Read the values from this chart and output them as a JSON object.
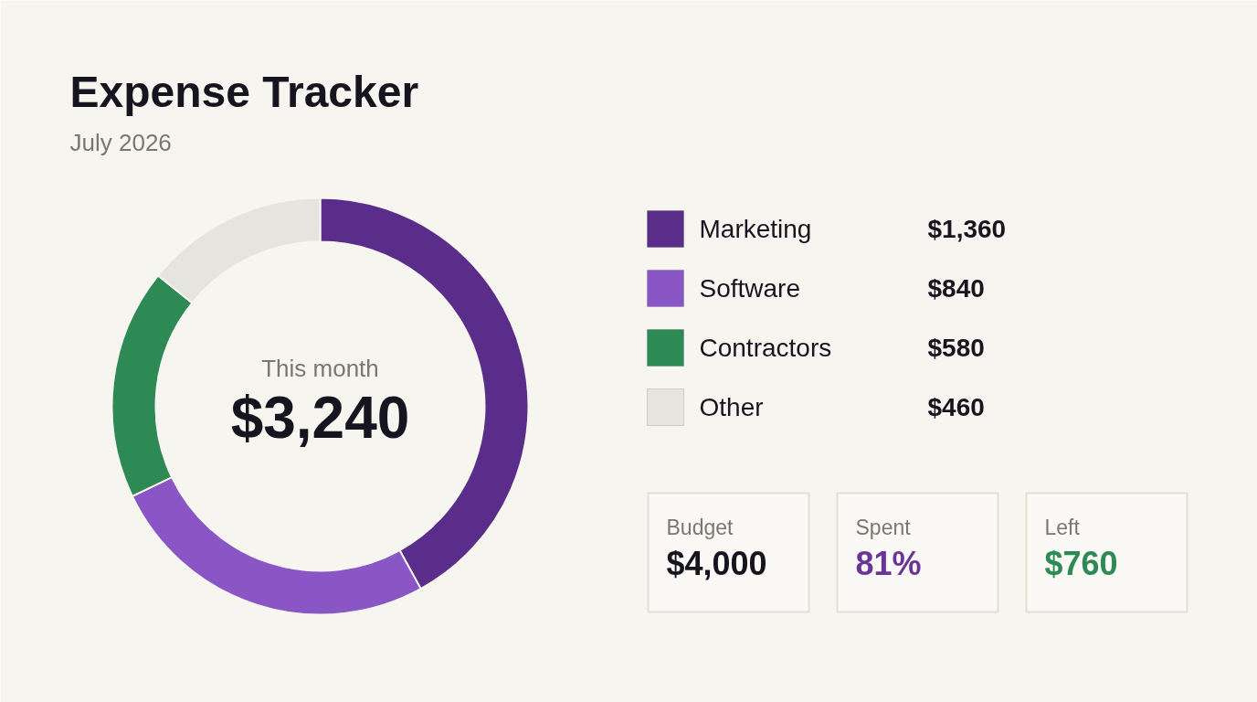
{
  "chart_data": {
    "type": "donut",
    "title": "Expense Tracker",
    "subtitle": "July 2026",
    "categories": [
      "Marketing",
      "Software",
      "Contractors",
      "Other"
    ],
    "values": [
      1360,
      840,
      580,
      460
    ],
    "colors": [
      "#5b2d8a",
      "#8a55c4",
      "#2e8a55",
      "#e6e4de"
    ],
    "value_labels": [
      "$1,360",
      "$840",
      "$580",
      "$460"
    ],
    "legend": "right",
    "annotations": [
      "This month",
      "$3,240",
      "Budget",
      "$4,000",
      "Spent",
      "81%",
      "Left",
      "$760"
    ]
  }
}
